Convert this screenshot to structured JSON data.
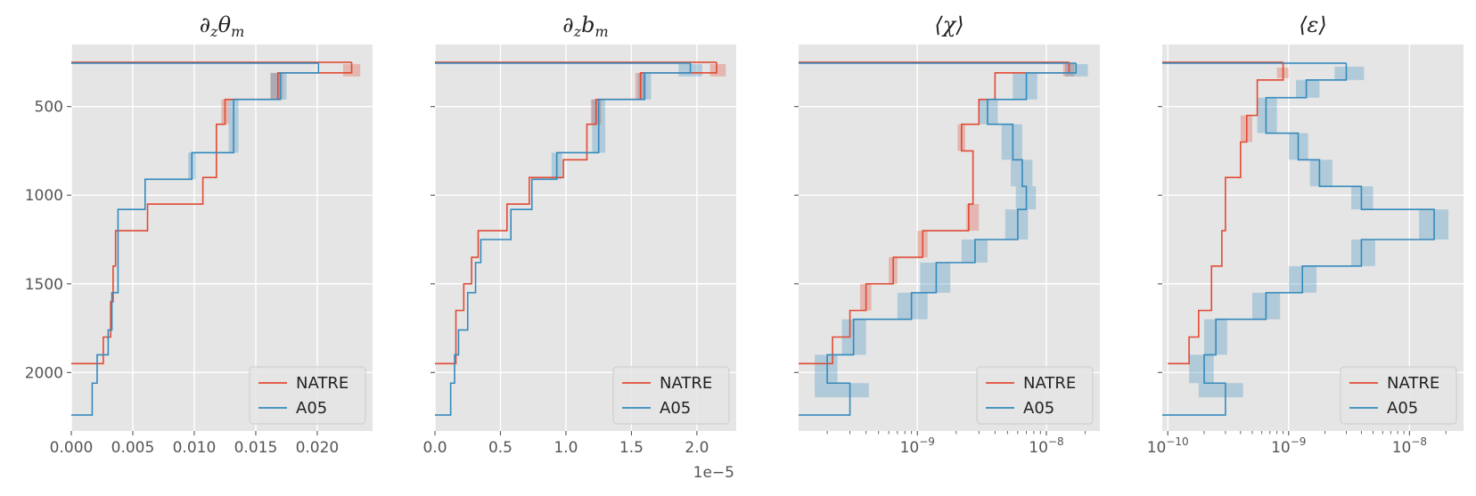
{
  "figure": {
    "colors": {
      "natre": "#E24A33",
      "a05": "#348ABD",
      "panel_bg": "#E5E5E5",
      "grid": "#FFFFFF",
      "tick": "#555555"
    }
  },
  "chart_data": [
    {
      "type": "line",
      "title": "∂zθm",
      "xscale": "linear",
      "xlim": [
        0,
        0.0245
      ],
      "ylim": [
        2330,
        150
      ],
      "yinvert": true,
      "xticks": [
        0,
        0.005,
        0.01,
        0.015,
        0.02
      ],
      "xtick_labels": [
        "0.000",
        "0.005",
        "0.010",
        "0.015",
        "0.020"
      ],
      "yticks": [
        500,
        1000,
        1500,
        2000
      ],
      "ytick_labels": [
        "500",
        "1000",
        "1500",
        "2000"
      ],
      "x_offset_label": "",
      "legend": {
        "location": "lower right",
        "entries": [
          "NATRE",
          "A05"
        ]
      },
      "series": [
        {
          "name": "NATRE",
          "x": [
            0.0228,
            0.0228,
            0.0168,
            0.0168,
            0.0125,
            0.0125,
            0.0118,
            0.0118,
            0.0107,
            0.0107,
            0.0062,
            0.0062,
            0.0036,
            0.0036,
            0.0034,
            0.0034,
            0.0032,
            0.0032,
            0.0026,
            0.0026,
            0.0024,
            0.0024,
            0.0
          ],
          "y": [
            250,
            310,
            310,
            460,
            460,
            600,
            600,
            900,
            900,
            1050,
            1050,
            1200,
            1200,
            1400,
            1400,
            1600,
            1600,
            1800,
            1800,
            1950,
            1950,
            1950,
            1950
          ]
        },
        {
          "name": "A05",
          "x": [
            0.0201,
            0.0201,
            0.017,
            0.017,
            0.0132,
            0.0132,
            0.0098,
            0.0098,
            0.006,
            0.006,
            0.0038,
            0.0038,
            0.0033,
            0.0033,
            0.003,
            0.003,
            0.0021,
            0.0021,
            0.0017,
            0.0017,
            0.0
          ],
          "y": [
            255,
            310,
            310,
            460,
            460,
            760,
            760,
            910,
            910,
            1080,
            1080,
            1550,
            1550,
            1760,
            1760,
            1900,
            1900,
            2060,
            2060,
            2240,
            2240
          ]
        }
      ],
      "top_line": [
        {
          "name": "NATRE",
          "x0": 0,
          "x1": 0.0228,
          "y": 250
        },
        {
          "name": "A05",
          "x0": 0,
          "x1": 0.0201,
          "y": 255
        }
      ],
      "uncertainty": [
        {
          "name": "NATRE",
          "boxes": [
            [
              0.0221,
              0.0235,
              260,
              330
            ],
            [
              0.0162,
              0.0172,
              310,
              460
            ],
            [
              0.0122,
              0.0128,
              460,
              600
            ]
          ]
        },
        {
          "name": "A05",
          "boxes": [
            [
              0.0162,
              0.0175,
              310,
              460
            ],
            [
              0.0128,
              0.0136,
              460,
              760
            ],
            [
              0.0095,
              0.0101,
              760,
              910
            ]
          ]
        }
      ]
    },
    {
      "type": "line",
      "title": "∂zbm",
      "xscale": "linear",
      "xlim": [
        0,
        2.3
      ],
      "ylim": [
        2330,
        150
      ],
      "yinvert": true,
      "xticks": [
        0,
        0.5,
        1.0,
        1.5,
        2.0
      ],
      "xtick_labels": [
        "0.0",
        "0.5",
        "1.0",
        "1.5",
        "2.0"
      ],
      "yticks": [
        500,
        1000,
        1500,
        2000
      ],
      "ytick_labels": [
        "",
        "",
        "",
        ""
      ],
      "x_offset_label": "1e−5",
      "legend": {
        "location": "lower right",
        "entries": [
          "NATRE",
          "A05"
        ]
      },
      "series": [
        {
          "name": "NATRE",
          "x": [
            2.15,
            2.15,
            1.57,
            1.57,
            1.23,
            1.23,
            1.16,
            1.16,
            0.98,
            0.98,
            0.72,
            0.72,
            0.55,
            0.55,
            0.33,
            0.33,
            0.28,
            0.28,
            0.22,
            0.22,
            0.16,
            0.16,
            0.0
          ],
          "y": [
            250,
            310,
            310,
            460,
            460,
            600,
            600,
            800,
            800,
            900,
            900,
            1050,
            1050,
            1200,
            1200,
            1350,
            1350,
            1500,
            1500,
            1650,
            1650,
            1950,
            1950
          ]
        },
        {
          "name": "A05",
          "x": [
            1.95,
            1.95,
            1.6,
            1.6,
            1.25,
            1.25,
            0.93,
            0.93,
            0.74,
            0.74,
            0.58,
            0.58,
            0.35,
            0.35,
            0.31,
            0.31,
            0.25,
            0.25,
            0.18,
            0.18,
            0.15,
            0.15,
            0.12,
            0.12,
            0.0
          ],
          "y": [
            255,
            310,
            310,
            460,
            460,
            760,
            760,
            910,
            910,
            1080,
            1080,
            1250,
            1250,
            1380,
            1380,
            1550,
            1550,
            1760,
            1760,
            1900,
            1900,
            2060,
            2060,
            2240,
            2240
          ]
        }
      ],
      "top_line": [
        {
          "name": "NATRE",
          "x0": 0,
          "x1": 2.15,
          "y": 250
        },
        {
          "name": "A05",
          "x0": 0,
          "x1": 1.95,
          "y": 255
        }
      ],
      "uncertainty": [
        {
          "name": "NATRE",
          "boxes": [
            [
              2.1,
              2.22,
              260,
              330
            ],
            [
              1.53,
              1.61,
              310,
              460
            ],
            [
              1.19,
              1.27,
              460,
              600
            ]
          ]
        },
        {
          "name": "A05",
          "boxes": [
            [
              1.86,
              2.04,
              260,
              330
            ],
            [
              1.55,
              1.65,
              310,
              460
            ],
            [
              1.2,
              1.3,
              460,
              760
            ],
            [
              0.89,
              0.97,
              760,
              910
            ]
          ]
        }
      ]
    },
    {
      "type": "line",
      "title": "⟨χ⟩",
      "xscale": "log",
      "xlim": [
        1.2e-10,
        2.6e-08
      ],
      "ylim": [
        2330,
        150
      ],
      "yinvert": true,
      "xticks": [
        1e-09,
        1e-08
      ],
      "xtick_labels": [
        [
          "10",
          "−9"
        ],
        [
          "10",
          "−8"
        ]
      ],
      "yticks": [
        500,
        1000,
        1500,
        2000
      ],
      "ytick_labels": [
        "",
        "",
        "",
        ""
      ],
      "x_offset_label": "",
      "legend": {
        "location": "lower right",
        "entries": [
          "NATRE",
          "A05"
        ]
      },
      "series": [
        {
          "name": "NATRE",
          "x": [
            1.5e-08,
            1.5e-08,
            4e-09,
            4e-09,
            3e-09,
            3e-09,
            2.2e-09,
            2.2e-09,
            2.7e-09,
            2.7e-09,
            2.5e-09,
            2.5e-09,
            1.1e-09,
            1.1e-09,
            6.5e-10,
            6.5e-10,
            4e-10,
            4e-10,
            3e-10,
            3e-10,
            2.2e-10,
            2.2e-10,
            1.2e-10
          ],
          "y": [
            250,
            310,
            310,
            460,
            460,
            600,
            600,
            750,
            750,
            1050,
            1050,
            1200,
            1200,
            1350,
            1350,
            1500,
            1500,
            1650,
            1650,
            1800,
            1800,
            1950,
            1950
          ]
        },
        {
          "name": "A05",
          "x": [
            1.7e-08,
            1.7e-08,
            7e-09,
            7e-09,
            3.5e-09,
            3.5e-09,
            5.5e-09,
            5.5e-09,
            6.5e-09,
            6.5e-09,
            7e-09,
            7e-09,
            6e-09,
            6e-09,
            2.8e-09,
            2.8e-09,
            1.4e-09,
            1.4e-09,
            9e-10,
            9e-10,
            3.2e-10,
            3.2e-10,
            2e-10,
            2e-10,
            3e-10,
            3e-10,
            1.2e-10
          ],
          "y": [
            255,
            310,
            310,
            460,
            460,
            600,
            600,
            800,
            800,
            950,
            950,
            1080,
            1080,
            1250,
            1250,
            1380,
            1380,
            1550,
            1550,
            1700,
            1700,
            1900,
            1900,
            2060,
            2060,
            2240,
            2240
          ]
        }
      ],
      "top_line": [
        {
          "name": "NATRE",
          "x0": 1.2e-10,
          "x1": 1.5e-08,
          "y": 250
        },
        {
          "name": "A05",
          "x0": 1.2e-10,
          "x1": 1.7e-08,
          "y": 255
        }
      ],
      "uncertainty": [
        {
          "name": "NATRE",
          "boxes": [
            [
              1.35e-08,
              1.65e-08,
              260,
              330
            ],
            [
              2.05e-09,
              2.35e-09,
              600,
              750
            ],
            [
              2.4e-09,
              3e-09,
              1050,
              1200
            ],
            [
              1e-09,
              1.2e-09,
              1200,
              1350
            ],
            [
              6e-10,
              7e-10,
              1350,
              1500
            ],
            [
              3.6e-10,
              4.4e-10,
              1500,
              1650
            ]
          ]
        },
        {
          "name": "A05",
          "boxes": [
            [
              1.4e-08,
              2.1e-08,
              260,
              330
            ],
            [
              5.5e-09,
              8.5e-09,
              310,
              460
            ],
            [
              3e-09,
              4.2e-09,
              460,
              600
            ],
            [
              4.5e-09,
              6.5e-09,
              600,
              800
            ],
            [
              5.3e-09,
              7.8e-09,
              800,
              950
            ],
            [
              5.8e-09,
              8.3e-09,
              950,
              1080
            ],
            [
              4.8e-09,
              7.2e-09,
              1080,
              1250
            ],
            [
              2.2e-09,
              3.5e-09,
              1250,
              1380
            ],
            [
              1.05e-09,
              1.8e-09,
              1380,
              1550
            ],
            [
              7e-10,
              1.2e-09,
              1550,
              1700
            ],
            [
              2.6e-10,
              4e-10,
              1700,
              1900
            ],
            [
              1.6e-10,
              2.4e-10,
              1900,
              2060
            ],
            [
              1.6e-10,
              4.2e-10,
              2060,
              2140
            ]
          ]
        }
      ]
    },
    {
      "type": "line",
      "title": "⟨ε⟩",
      "xscale": "log",
      "xlim": [
        9e-11,
        2.8e-08
      ],
      "ylim": [
        2330,
        150
      ],
      "yinvert": true,
      "xticks": [
        1e-10,
        1e-09,
        1e-08
      ],
      "xtick_labels": [
        [
          "10",
          "−10"
        ],
        [
          "10",
          "−9"
        ],
        [
          "10",
          "−8"
        ]
      ],
      "yticks": [
        500,
        1000,
        1500,
        2000
      ],
      "ytick_labels": [
        "",
        "",
        "",
        ""
      ],
      "x_offset_label": "",
      "legend": {
        "location": "lower right",
        "entries": [
          "NATRE",
          "A05"
        ]
      },
      "series": [
        {
          "name": "NATRE",
          "x": [
            9e-10,
            9e-10,
            5.5e-10,
            5.5e-10,
            4.5e-10,
            4.5e-10,
            4e-10,
            4e-10,
            3e-10,
            3e-10,
            2.8e-10,
            2.8e-10,
            2.3e-10,
            2.3e-10,
            1.8e-10,
            1.8e-10,
            1.5e-10,
            1.5e-10,
            1e-10
          ],
          "y": [
            250,
            350,
            350,
            550,
            550,
            700,
            700,
            900,
            900,
            1200,
            1200,
            1400,
            1400,
            1650,
            1650,
            1800,
            1800,
            1950,
            1950
          ]
        },
        {
          "name": "A05",
          "x": [
            3e-09,
            3e-09,
            1.4e-09,
            1.4e-09,
            6.5e-10,
            6.5e-10,
            1.2e-09,
            1.2e-09,
            1.8e-09,
            1.8e-09,
            4e-09,
            4e-09,
            1.6e-08,
            1.6e-08,
            4e-09,
            4e-09,
            1.3e-09,
            1.3e-09,
            6.5e-10,
            6.5e-10,
            2.5e-10,
            2.5e-10,
            2e-10,
            2e-10,
            3e-10,
            3e-10,
            9e-11
          ],
          "y": [
            255,
            350,
            350,
            450,
            450,
            650,
            650,
            800,
            800,
            950,
            950,
            1080,
            1080,
            1250,
            1250,
            1400,
            1400,
            1550,
            1550,
            1700,
            1700,
            1900,
            1900,
            2060,
            2060,
            2240,
            2240
          ]
        }
      ],
      "top_line": [
        {
          "name": "NATRE",
          "x0": 9e-11,
          "x1": 9e-10,
          "y": 250
        },
        {
          "name": "A05",
          "x0": 9e-11,
          "x1": 3e-09,
          "y": 255
        }
      ],
      "uncertainty": [
        {
          "name": "NATRE",
          "boxes": [
            [
              8e-10,
              1e-09,
              280,
              340
            ],
            [
              4e-10,
              5e-10,
              550,
              700
            ]
          ]
        },
        {
          "name": "A05",
          "boxes": [
            [
              2.4e-09,
              4.2e-09,
              275,
              350
            ],
            [
              1.15e-09,
              1.8e-09,
              350,
              450
            ],
            [
              5.5e-10,
              8e-10,
              450,
              650
            ],
            [
              1e-09,
              1.45e-09,
              650,
              800
            ],
            [
              1.5e-09,
              2.3e-09,
              800,
              950
            ],
            [
              3.3e-09,
              5e-09,
              950,
              1080
            ],
            [
              1.2e-08,
              2.1e-08,
              1080,
              1250
            ],
            [
              3.3e-09,
              5.2e-09,
              1250,
              1400
            ],
            [
              1e-09,
              1.7e-09,
              1400,
              1550
            ],
            [
              5e-10,
              8.5e-10,
              1550,
              1700
            ],
            [
              2e-10,
              3.1e-10,
              1700,
              1900
            ],
            [
              1.5e-10,
              2.4e-10,
              1900,
              2060
            ],
            [
              1.8e-10,
              4.2e-10,
              2060,
              2140
            ]
          ]
        }
      ]
    }
  ]
}
